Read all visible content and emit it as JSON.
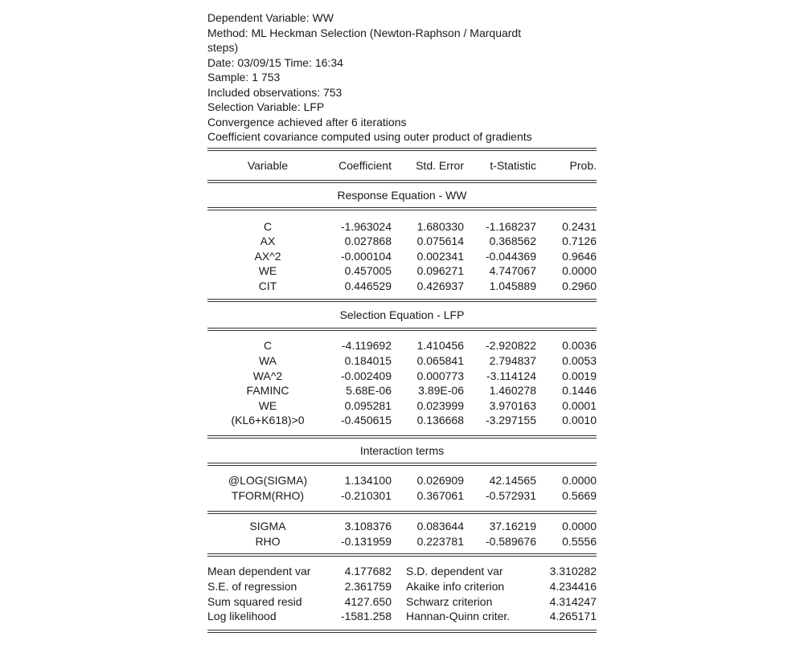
{
  "header": [
    "Dependent Variable: WW",
    "Method: ML Heckman Selection (Newton-Raphson / Marquardt",
    "steps)",
    "Date: 03/09/15   Time: 16:34",
    "Sample: 1 753",
    "Included observations: 753",
    "Selection Variable: LFP",
    "Convergence achieved after 6 iterations",
    "Coefficient covariance computed using outer product of gradients"
  ],
  "columns": [
    "Variable",
    "Coefficient",
    "Std. Error",
    "t-Statistic",
    "Prob."
  ],
  "response": {
    "title": "Response Equation - WW",
    "rows": [
      [
        "C",
        "-1.963024",
        "1.680330",
        "-1.168237",
        "0.2431"
      ],
      [
        "AX",
        "0.027868",
        "0.075614",
        "0.368562",
        "0.7126"
      ],
      [
        "AX^2",
        "-0.000104",
        "0.002341",
        "-0.044369",
        "0.9646"
      ],
      [
        "WE",
        "0.457005",
        "0.096271",
        "4.747067",
        "0.0000"
      ],
      [
        "CIT",
        "0.446529",
        "0.426937",
        "1.045889",
        "0.2960"
      ]
    ]
  },
  "selection": {
    "title": "Selection Equation - LFP",
    "rows": [
      [
        "C",
        "-4.119692",
        "1.410456",
        "-2.920822",
        "0.0036"
      ],
      [
        "WA",
        "0.184015",
        "0.065841",
        "2.794837",
        "0.0053"
      ],
      [
        "WA^2",
        "-0.002409",
        "0.000773",
        "-3.114124",
        "0.0019"
      ],
      [
        "FAMINC",
        "5.68E-06",
        "3.89E-06",
        "1.460278",
        "0.1446"
      ],
      [
        "WE",
        "0.095281",
        "0.023999",
        "3.970163",
        "0.0001"
      ],
      [
        "(KL6+K618)>0",
        "-0.450615",
        "0.136668",
        "-3.297155",
        "0.0010"
      ]
    ]
  },
  "interaction": {
    "title": "Interaction terms",
    "rows": [
      [
        "@LOG(SIGMA)",
        "1.134100",
        "0.026909",
        "42.14565",
        "0.0000"
      ],
      [
        "TFORM(RHO)",
        "-0.210301",
        "0.367061",
        "-0.572931",
        "0.5669"
      ]
    ],
    "derived": [
      [
        "SIGMA",
        "3.108376",
        "0.083644",
        "37.16219",
        "0.0000"
      ],
      [
        "RHO",
        "-0.131959",
        "0.223781",
        "-0.589676",
        "0.5556"
      ]
    ]
  },
  "stats": [
    [
      "Mean dependent var",
      "4.177682",
      "S.D. dependent var",
      "3.310282"
    ],
    [
      "S.E. of regression",
      "2.361759",
      "Akaike info criterion",
      "4.234416"
    ],
    [
      "Sum squared resid",
      "4127.650",
      "Schwarz criterion",
      "4.314247"
    ],
    [
      "Log likelihood",
      "-1581.258",
      "Hannan-Quinn criter.",
      "4.265171"
    ]
  ]
}
